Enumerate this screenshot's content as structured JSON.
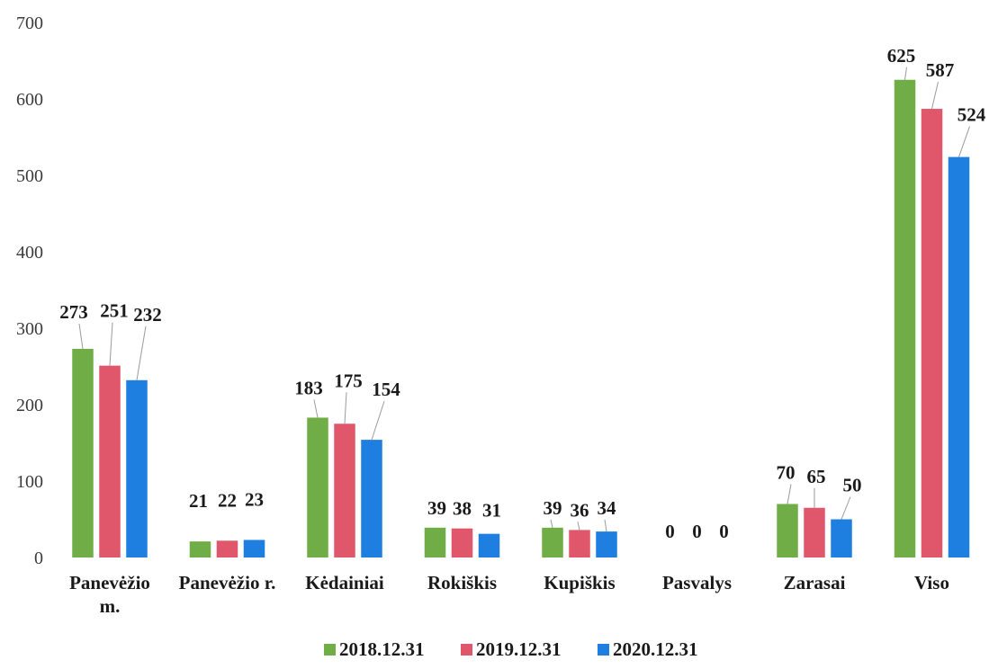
{
  "chart_data": {
    "type": "bar",
    "categories": [
      [
        "Panevėžio",
        "m."
      ],
      [
        "Panevėžio r."
      ],
      [
        "Kėdainiai"
      ],
      [
        "Rokiškis"
      ],
      [
        "Kupiškis"
      ],
      [
        "Pasvalys"
      ],
      [
        "Zarasai"
      ],
      [
        "Viso"
      ]
    ],
    "series": [
      {
        "name": "2018.12.31",
        "color": "#70ad47",
        "values": [
          273,
          21,
          183,
          39,
          39,
          0,
          70,
          625
        ],
        "data_labels": [
          "273",
          "21",
          "183",
          "39",
          "39",
          "0",
          "70",
          "625"
        ]
      },
      {
        "name": "2019.12.31",
        "color": "#e0566a",
        "values": [
          251,
          22,
          175,
          38,
          36,
          0,
          65,
          587
        ],
        "data_labels": [
          "251",
          "22",
          "175",
          "38",
          "36",
          "0",
          "65",
          "587"
        ]
      },
      {
        "name": "2020.12.31",
        "color": "#1f7fe0",
        "values": [
          232,
          23,
          154,
          31,
          34,
          0,
          50,
          524
        ],
        "data_labels": [
          "232",
          "23",
          "154",
          "31",
          "34",
          "0",
          "50",
          "524"
        ]
      }
    ],
    "ylim": [
      0,
      700
    ],
    "yticks": [
      "0",
      "100",
      "200",
      "300",
      "400",
      "500",
      "600",
      "700"
    ],
    "grid": false,
    "legend_position": "bottom",
    "title": "",
    "xlabel": "",
    "ylabel": ""
  }
}
